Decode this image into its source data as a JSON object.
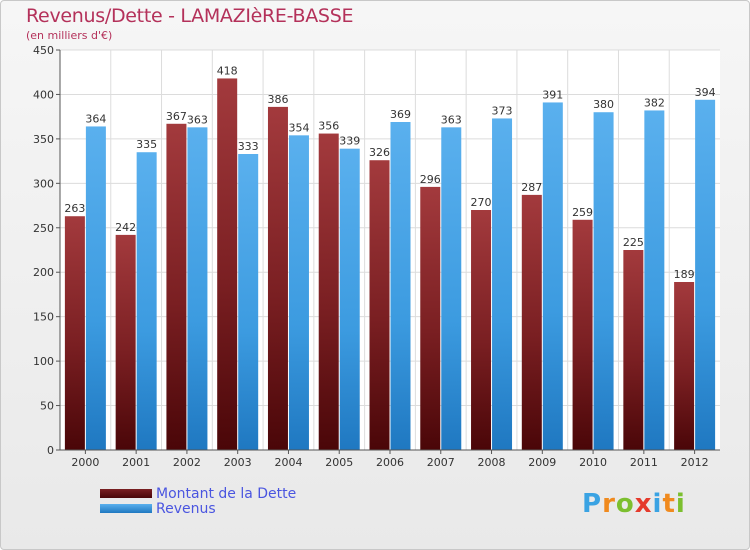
{
  "header": {
    "title": "Revenus/Dette - LAMAZIèRE-BASSE",
    "subtitle": "(en milliers d'€)"
  },
  "legend": {
    "debt_label": "Montant de la Dette",
    "revenue_label": "Revenus"
  },
  "logo": {
    "letters": [
      "P",
      "r",
      "o",
      "x",
      "i",
      "t",
      "i"
    ],
    "colors": [
      "#3aa3e3",
      "#f08a1e",
      "#7cbf2f",
      "#e53a2c",
      "#3aa3e3",
      "#f08a1e",
      "#7cbf2f"
    ]
  },
  "colors": {
    "debt": "#7a1f22",
    "debt_light": "#a33a3d",
    "debt_dark": "#4a0608",
    "revenue": "#3c9be0",
    "revenue_light": "#5ab0ee",
    "revenue_dark": "#1f78c1"
  },
  "chart_data": {
    "type": "bar",
    "title": "Revenus/Dette - LAMAZIèRE-BASSE",
    "subtitle": "(en milliers d'€)",
    "categories": [
      "2000",
      "2001",
      "2002",
      "2003",
      "2004",
      "2005",
      "2006",
      "2007",
      "2008",
      "2009",
      "2010",
      "2011",
      "2012"
    ],
    "series": [
      {
        "name": "Montant de la Dette",
        "values": [
          263,
          242,
          367,
          418,
          386,
          356,
          326,
          296,
          270,
          287,
          259,
          225,
          189
        ]
      },
      {
        "name": "Revenus",
        "values": [
          364,
          335,
          363,
          333,
          354,
          339,
          369,
          363,
          373,
          391,
          380,
          382,
          394
        ]
      }
    ],
    "ylim": [
      0,
      450
    ],
    "yticks": [
      0,
      50,
      100,
      150,
      200,
      250,
      300,
      350,
      400,
      450
    ],
    "grid": true,
    "legend": "bottom-left"
  }
}
